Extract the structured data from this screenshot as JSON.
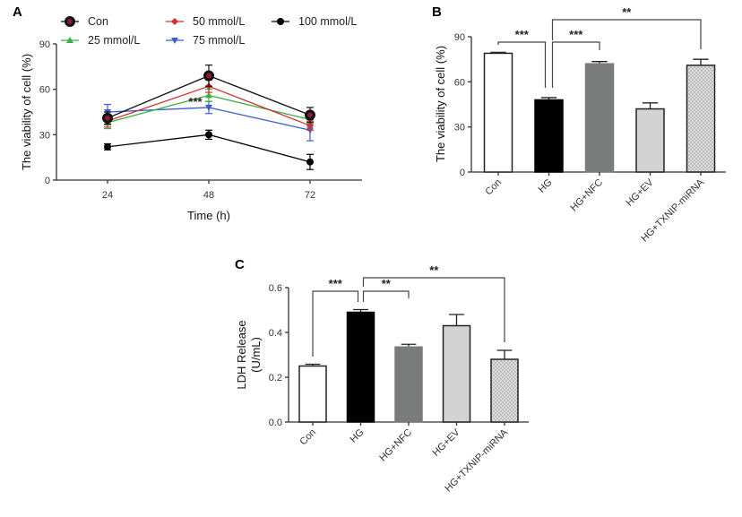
{
  "figure": {
    "panels": [
      "A",
      "B",
      "C"
    ]
  },
  "chart_data": [
    {
      "panel": "A",
      "type": "line",
      "title": "",
      "xlabel": "Time (h)",
      "ylabel": "The viability of cell (%)",
      "x": [
        24,
        48,
        72
      ],
      "x_tick_labels": [
        "24",
        "48",
        "72"
      ],
      "ylim": [
        0,
        90
      ],
      "y_ticks": [
        0,
        30,
        60,
        90
      ],
      "grid": false,
      "legend_position": "top",
      "series": [
        {
          "name": "Con",
          "color": "#111111",
          "marker": "circle-ring",
          "marker_fill": "#8b1a3a",
          "values": [
            41,
            69,
            43
          ],
          "errors": [
            4,
            7,
            5
          ]
        },
        {
          "name": "25 mmol/L",
          "color": "#3cb043",
          "marker": "triangle-up",
          "values": [
            38,
            56,
            40
          ],
          "errors": [
            4,
            4,
            3
          ]
        },
        {
          "name": "50 mmol/L",
          "color": "#d32f2f",
          "marker": "diamond",
          "values": [
            39,
            62,
            36
          ],
          "errors": [
            4,
            4,
            3
          ]
        },
        {
          "name": "75 mmol/L",
          "color": "#3a5fcd",
          "marker": "triangle-down",
          "values": [
            45,
            48,
            33
          ],
          "errors": [
            5,
            4,
            7
          ]
        },
        {
          "name": "100 mmol/L",
          "color": "#000000",
          "marker": "circle",
          "values": [
            22,
            30,
            12
          ],
          "errors": [
            2,
            3,
            5
          ]
        }
      ],
      "annotations": [
        {
          "text": "***",
          "x": 48,
          "near_series": "75 mmol/L"
        }
      ]
    },
    {
      "panel": "B",
      "type": "bar",
      "title": "",
      "xlabel": "",
      "ylabel": "The viability of cell (%)",
      "categories": [
        "Con",
        "HG",
        "HG+NFC",
        "HG+EV",
        "HG+TXNIP-miRNA"
      ],
      "values": [
        79,
        48,
        72,
        42,
        71
      ],
      "errors": [
        0.6,
        1.5,
        1.5,
        4,
        4
      ],
      "bar_colors": [
        "#ffffff",
        "#000000",
        "#7a7c7b",
        "#d3d3d3",
        "#dcdcdc"
      ],
      "bar_patterns": [
        "none",
        "none",
        "none",
        "none",
        "dots"
      ],
      "ylim": [
        0,
        90
      ],
      "y_ticks": [
        0,
        30,
        60,
        90
      ],
      "grid": false,
      "significance": [
        {
          "from": "Con",
          "to": "HG",
          "label": "***"
        },
        {
          "from": "HG",
          "to": "HG+NFC",
          "label": "***"
        },
        {
          "from": "HG",
          "to": "HG+TXNIP-miRNA",
          "label": "**"
        }
      ]
    },
    {
      "panel": "C",
      "type": "bar",
      "title": "",
      "xlabel": "",
      "ylabel": "LDH Release",
      "ylabel_line2": "(U/mL)",
      "categories": [
        "Con",
        "HG",
        "HG+NFC",
        "HG+EV",
        "HG+TXNIP-miRNA"
      ],
      "values": [
        0.25,
        0.49,
        0.335,
        0.43,
        0.28
      ],
      "errors": [
        0.008,
        0.012,
        0.012,
        0.05,
        0.04
      ],
      "bar_colors": [
        "#ffffff",
        "#000000",
        "#7a7c7b",
        "#d3d3d3",
        "#dcdcdc"
      ],
      "bar_patterns": [
        "none",
        "none",
        "none",
        "none",
        "dots"
      ],
      "ylim": [
        0,
        0.6
      ],
      "y_ticks": [
        0.0,
        0.2,
        0.4,
        0.6
      ],
      "y_tick_labels": [
        "0.0",
        "0.2",
        "0.4",
        "0.6"
      ],
      "grid": false,
      "significance": [
        {
          "from": "Con",
          "to": "HG",
          "label": "***"
        },
        {
          "from": "HG",
          "to": "HG+NFC",
          "label": "**"
        },
        {
          "from": "HG",
          "to": "HG+TXNIP-miRNA",
          "label": "**"
        }
      ]
    }
  ]
}
